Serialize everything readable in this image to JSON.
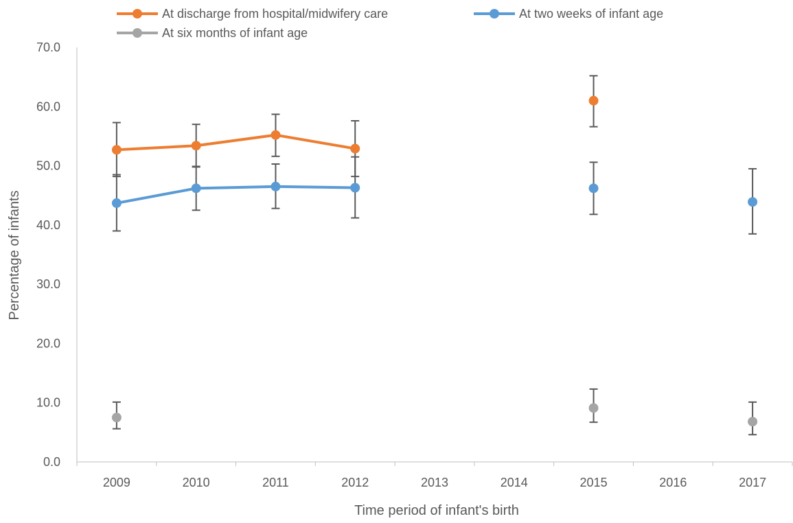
{
  "chart_data": {
    "type": "line",
    "title": "",
    "xlabel": "Time period of infant's birth",
    "ylabel": "Percentage of infants",
    "categories": [
      "2009",
      "2010",
      "2011",
      "2012",
      "2013",
      "2014",
      "2015",
      "2016",
      "2017"
    ],
    "ylim": [
      0,
      70
    ],
    "yticks": [
      "0.0",
      "10.0",
      "20.0",
      "30.0",
      "40.0",
      "50.0",
      "60.0",
      "70.0"
    ],
    "grid": false,
    "legend_position": "top",
    "series": [
      {
        "name": "At discharge from hospital/midwifery care",
        "color": "#ED7D31",
        "values": [
          52.7,
          53.4,
          55.2,
          52.9,
          null,
          null,
          61.0,
          null,
          null
        ],
        "error_low": [
          48.2,
          49.8,
          51.6,
          48.2,
          null,
          null,
          56.6,
          null,
          null
        ],
        "error_high": [
          57.3,
          57.0,
          58.7,
          57.6,
          null,
          null,
          65.2,
          null,
          null
        ]
      },
      {
        "name": "At two weeks of infant age",
        "color": "#5B9BD5",
        "values": [
          43.7,
          46.2,
          46.5,
          46.3,
          null,
          null,
          46.2,
          null,
          43.9
        ],
        "error_low": [
          39.0,
          42.5,
          42.8,
          41.2,
          null,
          null,
          41.8,
          null,
          38.5
        ],
        "error_high": [
          48.5,
          49.9,
          50.3,
          51.5,
          null,
          null,
          50.6,
          null,
          49.5
        ]
      },
      {
        "name": "At six months of infant age",
        "color": "#A5A5A5",
        "values": [
          7.5,
          null,
          null,
          null,
          null,
          null,
          9.1,
          null,
          6.8
        ],
        "error_low": [
          5.6,
          null,
          null,
          null,
          null,
          null,
          6.7,
          null,
          4.6
        ],
        "error_high": [
          10.1,
          null,
          null,
          null,
          null,
          null,
          12.3,
          null,
          10.1
        ]
      }
    ],
    "errorbar_color": "#595959",
    "axis_color": "#BFBFBF"
  }
}
